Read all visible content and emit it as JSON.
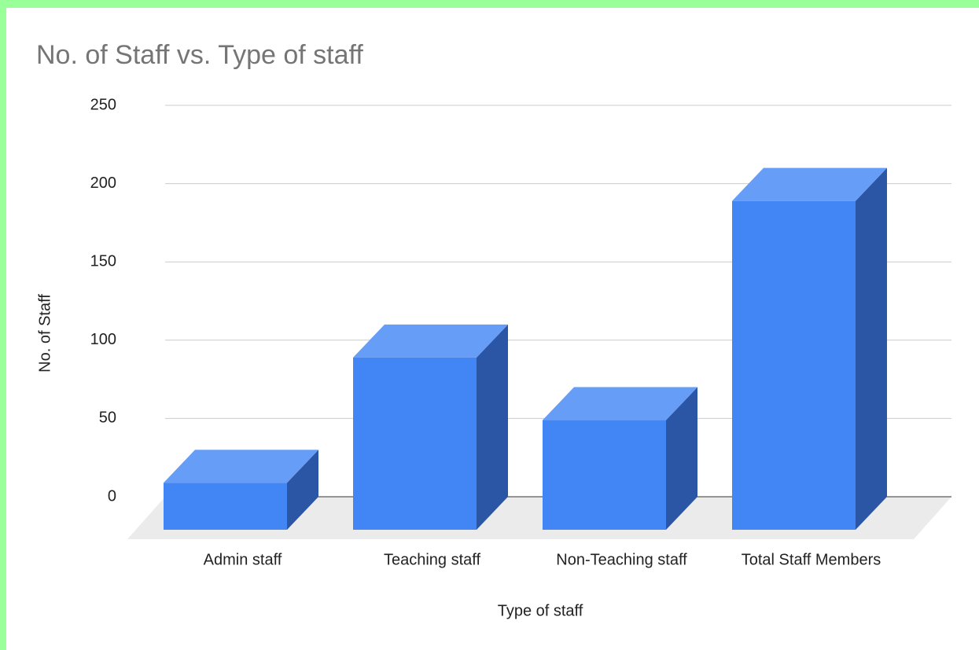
{
  "chart_data": {
    "type": "bar3d",
    "title": "No. of Staff vs. Type of staff",
    "x_label": "Type of staff",
    "y_label": "No. of Staff",
    "categories": [
      "Admin staff",
      "Teaching staff",
      "Non-Teaching staff",
      "Total Staff Members"
    ],
    "values": [
      30,
      110,
      70,
      210
    ],
    "color": "#4285f4",
    "ylim": [
      0,
      250
    ],
    "yticks": [
      0,
      50,
      100,
      150,
      200,
      250
    ],
    "grid": true
  }
}
